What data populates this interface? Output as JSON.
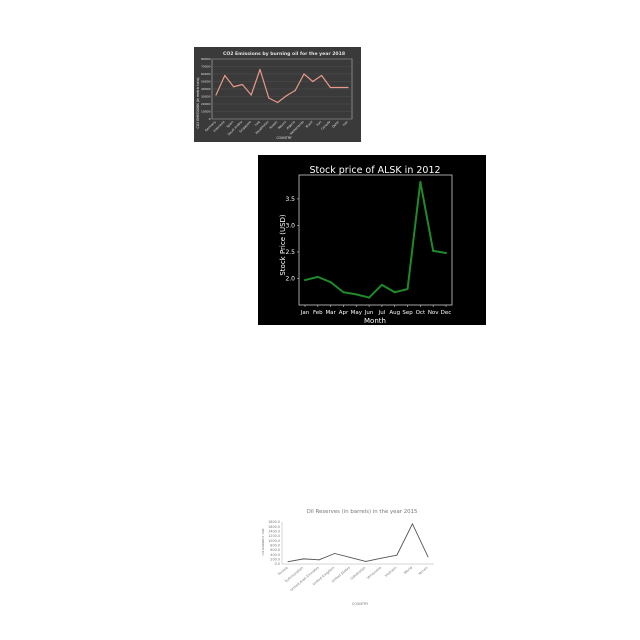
{
  "chart_data": [
    {
      "type": "line",
      "title": "CO2 Emissions by burning oil for the year 2018",
      "xlabel": "COUNTRY",
      "ylabel": "CO2 EMISSIONS (in metric tons)",
      "categories": [
        "Germany",
        "Indonesia",
        "Spain",
        "Saudi Arabia",
        "Singapore",
        "Iraq",
        "Kazakhstan",
        "Kuwait",
        "Mexico",
        "Algeria",
        "Netherlands",
        "Brazil",
        "Iran",
        "Canada",
        "Qatar",
        "Iran"
      ],
      "values": [
        32000,
        58000,
        43000,
        46000,
        32000,
        66000,
        28000,
        22000,
        31000,
        38000,
        60000,
        50000,
        58000,
        42000,
        42000,
        42000
      ],
      "ylim": [
        0,
        80000
      ],
      "yticks": [
        "0",
        "10000",
        "20000",
        "30000",
        "40000",
        "50000",
        "60000",
        "70000",
        "80000"
      ],
      "grid": true,
      "colors": {
        "background": "#3a3a3a",
        "line": "#e89a8a",
        "text": "#e0e0e0"
      }
    },
    {
      "type": "line",
      "title": "Stock price of ALSK in 2012",
      "xlabel": "Month",
      "ylabel": "Stock Price (USD)",
      "categories": [
        "Jan",
        "Feb",
        "Mar",
        "Apr",
        "May",
        "Jun",
        "Jul",
        "Aug",
        "Sep",
        "Oct",
        "Nov",
        "Dec"
      ],
      "values": [
        1.97,
        2.03,
        1.93,
        1.74,
        1.7,
        1.64,
        1.88,
        1.74,
        1.8,
        3.82,
        2.52,
        2.48
      ],
      "ylim": [
        1.5,
        3.95
      ],
      "yticks": [
        "2.0",
        "2.5",
        "3.0",
        "3.5"
      ],
      "grid": false,
      "colors": {
        "background": "#000000",
        "line": "#1f8a2a",
        "text": "#ffffff"
      }
    },
    {
      "type": "line",
      "title": "Oil Reserves  (in barrels) in the year 2015",
      "xlabel": "COUNTRY",
      "ylabel": "OIL BARRELS 10M",
      "categories": [
        "Tunisia",
        "Turkmenistan",
        "United Arab Emirates",
        "United Kingdom",
        "United States",
        "Uzbekistan",
        "Venezuela",
        "Vietnam",
        "World",
        "Yemen"
      ],
      "values": [
        100,
        220,
        180,
        450,
        280,
        110,
        250,
        380,
        1720,
        310
      ],
      "ylim": [
        0,
        1800
      ],
      "yticks": [
        "0.0",
        "200.0",
        "400.0",
        "600.0",
        "800.0",
        "1000.0",
        "1200.0",
        "1400.0",
        "1600.0",
        "1800.0"
      ],
      "grid": false,
      "colors": {
        "background": "#ffffff",
        "line": "#555555",
        "text": "#777777"
      }
    }
  ]
}
